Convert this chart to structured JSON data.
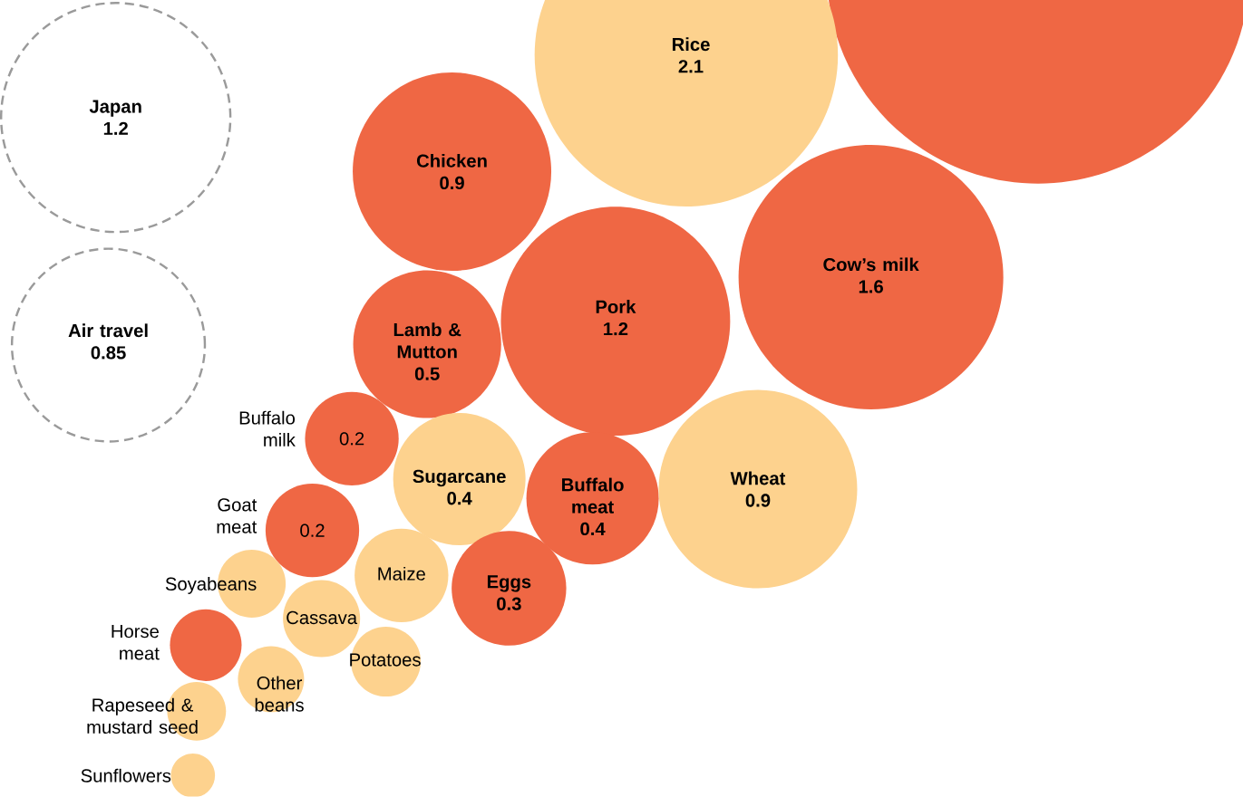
{
  "chart_data": {
    "type": "other",
    "categories": [
      "Japan",
      "Air travel",
      null,
      "Rice",
      "Chicken",
      "Cow’s milk",
      "Pork",
      "Lamb & Mutton",
      "Buffalo milk",
      "Sugarcane",
      "Buffalo meat",
      "Wheat",
      "Goat meat",
      "Maize",
      "Eggs",
      "Soyabeans",
      "Cassava",
      "Horse meat",
      "Potatoes",
      "Other beans",
      "Rapeseed & mustard seed",
      "Sunflowers"
    ],
    "series": [
      {
        "values": [
          null,
          null,
          null,
          2.1,
          0.9,
          1.6,
          1.2,
          0.5,
          0.2,
          0.4,
          0.4,
          0.9,
          0.2,
          null,
          0.3,
          null,
          null,
          null,
          null,
          null,
          null,
          null
        ],
        "value_labels": [
          null,
          null,
          null,
          "2.1",
          "0.9",
          "1.6",
          "1.2",
          "0.5",
          "0.2",
          "0.4",
          "0.4",
          "0.9",
          "0.2",
          null,
          "0.3",
          null,
          null,
          null,
          null,
          null,
          null,
          null
        ],
        "colors": [
          null,
          null,
          "#ef6744",
          "#fdd28e",
          "#ef6744",
          "#ef6744",
          "#ef6744",
          "#ef6744",
          "#ef6744",
          "#fdd28e",
          "#ef6744",
          "#fdd28e",
          "#ef6744",
          "#fdd28e",
          "#ef6744",
          "#fdd28e",
          "#fdd28e",
          "#ef6744",
          "#fdd28e",
          "#fdd28e",
          "#fdd28e",
          "#fdd28e"
        ]
      },
      {
        "values": [
          1.2,
          0.85,
          null,
          null,
          null,
          null,
          null,
          null,
          null,
          null,
          null,
          null,
          null,
          null,
          null,
          null,
          null,
          null,
          null,
          null,
          null,
          null
        ],
        "value_labels": [
          "1.2",
          "0.85",
          null,
          null,
          null,
          null,
          null,
          null,
          null,
          null,
          null,
          null,
          null,
          null,
          null,
          null,
          null,
          null,
          null,
          null,
          null,
          null
        ],
        "color": "#9a9a9a",
        "line_style": "dashed"
      }
    ]
  }
}
